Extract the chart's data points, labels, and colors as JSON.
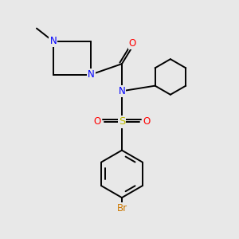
{
  "background_color": "#e8e8e8",
  "bond_color": "#000000",
  "N_color": "#0000ff",
  "O_color": "#ff0000",
  "S_color": "#bbbb00",
  "Br_color": "#cc7700",
  "figsize": [
    3.0,
    3.0
  ],
  "dpi": 100,
  "xlim": [
    0,
    10
  ],
  "ylim": [
    0,
    10
  ]
}
